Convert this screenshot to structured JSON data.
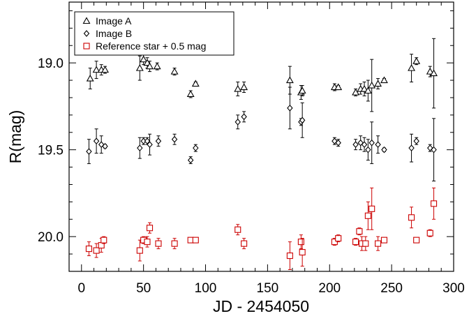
{
  "chart_data": {
    "type": "scatter",
    "title": "",
    "xlabel": "JD - 2454050",
    "ylabel": "R(mag)",
    "xlim": [
      -10,
      300
    ],
    "ylim": [
      20.2,
      18.65
    ],
    "y_inverted": true,
    "grid": false,
    "legend_position": "top-left",
    "xticks": [
      0,
      50,
      100,
      150,
      200,
      250,
      300
    ],
    "xtick_labels": [
      "0",
      "50",
      "100",
      "150",
      "200",
      "250",
      "300"
    ],
    "yticks": [
      19.0,
      19.5,
      20.0
    ],
    "ytick_labels": [
      "19.0",
      "19.5",
      "20.0"
    ],
    "series": [
      {
        "name": "Image A",
        "marker": "triangle",
        "color": "#000000",
        "points": [
          {
            "x": 7,
            "y": 19.09,
            "err": 0.06
          },
          {
            "x": 12,
            "y": 19.04,
            "err": 0.05
          },
          {
            "x": 16,
            "y": 19.04,
            "err": 0.03
          },
          {
            "x": 19,
            "y": 19.04,
            "err": 0.02
          },
          {
            "x": 47,
            "y": 19.03,
            "err": 0.07
          },
          {
            "x": 50,
            "y": 18.98,
            "err": 0.03
          },
          {
            "x": 53,
            "y": 19.0,
            "err": 0.03
          },
          {
            "x": 55,
            "y": 19.02,
            "err": 0.03
          },
          {
            "x": 61,
            "y": 19.02,
            "err": 0.02
          },
          {
            "x": 75,
            "y": 19.05,
            "err": 0.02
          },
          {
            "x": 88,
            "y": 19.18,
            "err": 0.02
          },
          {
            "x": 92,
            "y": 19.12,
            "err": 0.01
          },
          {
            "x": 126,
            "y": 19.15,
            "err": 0.04
          },
          {
            "x": 131,
            "y": 19.14,
            "err": 0.03
          },
          {
            "x": 168,
            "y": 19.1,
            "err": 0.08
          },
          {
            "x": 177,
            "y": 19.17,
            "err": 0.04
          },
          {
            "x": 178,
            "y": 19.16,
            "err": 0.03
          },
          {
            "x": 204,
            "y": 19.14,
            "err": 0.02
          },
          {
            "x": 207,
            "y": 19.14,
            "err": 0.01
          },
          {
            "x": 221,
            "y": 19.17,
            "err": 0.02
          },
          {
            "x": 225,
            "y": 19.15,
            "err": 0.03
          },
          {
            "x": 228,
            "y": 19.15,
            "err": 0.04
          },
          {
            "x": 231,
            "y": 19.16,
            "err": 0.06
          },
          {
            "x": 234,
            "y": 19.13,
            "err": 0.15
          },
          {
            "x": 239,
            "y": 19.12,
            "err": 0.03
          },
          {
            "x": 244,
            "y": 19.1,
            "err": 0.01
          },
          {
            "x": 266,
            "y": 19.03,
            "err": 0.08
          },
          {
            "x": 270,
            "y": 18.99,
            "err": 0.02
          },
          {
            "x": 281,
            "y": 19.05,
            "err": 0.03
          },
          {
            "x": 284,
            "y": 19.06,
            "err": 0.2
          }
        ]
      },
      {
        "name": "Image B",
        "marker": "diamond",
        "color": "#000000",
        "points": [
          {
            "x": 6,
            "y": 19.51,
            "err": 0.07
          },
          {
            "x": 12,
            "y": 19.45,
            "err": 0.07
          },
          {
            "x": 16,
            "y": 19.47,
            "err": 0.05
          },
          {
            "x": 19,
            "y": 19.48,
            "err": 0.01
          },
          {
            "x": 47,
            "y": 19.49,
            "err": 0.06
          },
          {
            "x": 50,
            "y": 19.45,
            "err": 0.02
          },
          {
            "x": 53,
            "y": 19.45,
            "err": 0.02
          },
          {
            "x": 55,
            "y": 19.47,
            "err": 0.06
          },
          {
            "x": 62,
            "y": 19.45,
            "err": 0.03
          },
          {
            "x": 75,
            "y": 19.44,
            "err": 0.03
          },
          {
            "x": 88,
            "y": 19.56,
            "err": 0.02
          },
          {
            "x": 92,
            "y": 19.49,
            "err": 0.02
          },
          {
            "x": 126,
            "y": 19.34,
            "err": 0.04
          },
          {
            "x": 131,
            "y": 19.31,
            "err": 0.03
          },
          {
            "x": 168,
            "y": 19.26,
            "err": 0.12
          },
          {
            "x": 177,
            "y": 19.34,
            "err": 0.02
          },
          {
            "x": 178,
            "y": 19.33,
            "err": 0.1
          },
          {
            "x": 204,
            "y": 19.45,
            "err": 0.02
          },
          {
            "x": 207,
            "y": 19.46,
            "err": 0.02
          },
          {
            "x": 221,
            "y": 19.47,
            "err": 0.03
          },
          {
            "x": 225,
            "y": 19.46,
            "err": 0.04
          },
          {
            "x": 228,
            "y": 19.47,
            "err": 0.04
          },
          {
            "x": 231,
            "y": 19.5,
            "err": 0.06
          },
          {
            "x": 234,
            "y": 19.46,
            "err": 0.12
          },
          {
            "x": 239,
            "y": 19.47,
            "err": 0.05
          },
          {
            "x": 244,
            "y": 19.5,
            "err": 0.01
          },
          {
            "x": 266,
            "y": 19.49,
            "err": 0.08
          },
          {
            "x": 270,
            "y": 19.45,
            "err": 0.02
          },
          {
            "x": 281,
            "y": 19.49,
            "err": 0.02
          },
          {
            "x": 284,
            "y": 19.5,
            "err": 0.18
          }
        ]
      },
      {
        "name": "Reference star + 0.5 mag",
        "marker": "square",
        "color": "#cc0000",
        "points": [
          {
            "x": 6,
            "y": 20.07,
            "err": 0.04
          },
          {
            "x": 12,
            "y": 20.08,
            "err": 0.04
          },
          {
            "x": 16,
            "y": 20.05,
            "err": 0.04
          },
          {
            "x": 18,
            "y": 20.02,
            "err": 0.02
          },
          {
            "x": 47,
            "y": 20.08,
            "err": 0.06
          },
          {
            "x": 50,
            "y": 20.02,
            "err": 0.02
          },
          {
            "x": 53,
            "y": 20.03,
            "err": 0.03
          },
          {
            "x": 55,
            "y": 19.95,
            "err": 0.03
          },
          {
            "x": 62,
            "y": 20.04,
            "err": 0.03
          },
          {
            "x": 75,
            "y": 20.04,
            "err": 0.03
          },
          {
            "x": 88,
            "y": 20.02,
            "err": 0.01
          },
          {
            "x": 92,
            "y": 20.02,
            "err": 0.01
          },
          {
            "x": 126,
            "y": 19.96,
            "err": 0.03
          },
          {
            "x": 131,
            "y": 20.04,
            "err": 0.03
          },
          {
            "x": 168,
            "y": 20.11,
            "err": 0.08
          },
          {
            "x": 177,
            "y": 20.03,
            "err": 0.04
          },
          {
            "x": 178,
            "y": 20.09,
            "err": 0.08
          },
          {
            "x": 204,
            "y": 20.03,
            "err": 0.02
          },
          {
            "x": 207,
            "y": 20.01,
            "err": 0.02
          },
          {
            "x": 221,
            "y": 20.03,
            "err": 0.02
          },
          {
            "x": 224,
            "y": 19.97,
            "err": 0.02
          },
          {
            "x": 226,
            "y": 20.04,
            "err": 0.04
          },
          {
            "x": 229,
            "y": 20.04,
            "err": 0.04
          },
          {
            "x": 231,
            "y": 19.88,
            "err": 0.08
          },
          {
            "x": 234,
            "y": 19.84,
            "err": 0.12
          },
          {
            "x": 239,
            "y": 20.04,
            "err": 0.04
          },
          {
            "x": 244,
            "y": 20.02,
            "err": 0.01
          },
          {
            "x": 266,
            "y": 19.89,
            "err": 0.06
          },
          {
            "x": 270,
            "y": 20.02,
            "err": 0.01
          },
          {
            "x": 281,
            "y": 19.98,
            "err": 0.02
          },
          {
            "x": 284,
            "y": 19.81,
            "err": 0.09
          }
        ]
      }
    ]
  }
}
